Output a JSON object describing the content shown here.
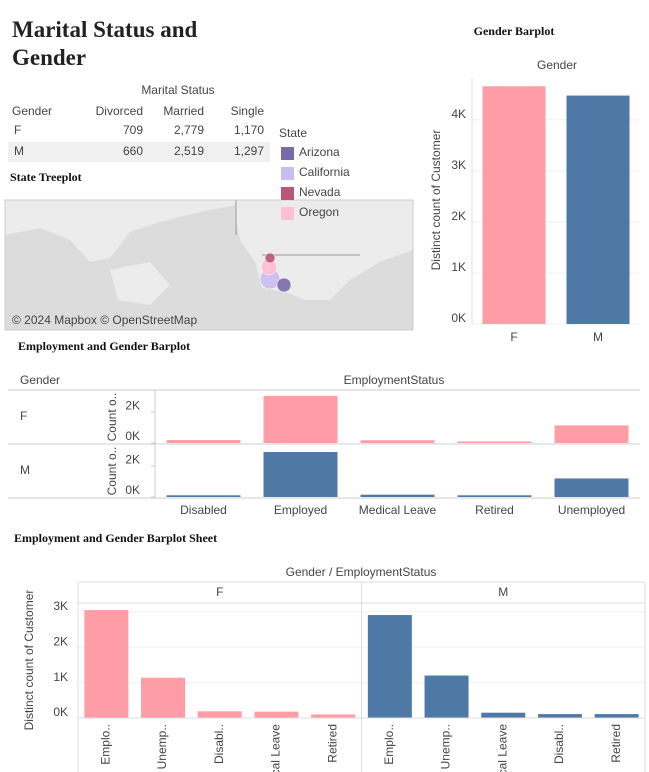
{
  "chart_data": [
    {
      "type": "table",
      "title": "Marital Status and Gender",
      "column_header": "Marital Status",
      "row_header": "Gender",
      "columns": [
        "Divorced",
        "Married",
        "Single"
      ],
      "rows": [
        {
          "name": "F",
          "values": [
            "709",
            "2,779",
            "1,170"
          ]
        },
        {
          "name": "M",
          "values": [
            "660",
            "2,519",
            "1,297"
          ]
        }
      ]
    },
    {
      "type": "map",
      "title": "State Treeplot",
      "legend_title": "State",
      "series": [
        {
          "name": "Arizona",
          "color": "#7b6aa8"
        },
        {
          "name": "California",
          "color": "#c9bdf0"
        },
        {
          "name": "Nevada",
          "color": "#b9577b"
        },
        {
          "name": "Oregon",
          "color": "#ffbfd3"
        }
      ],
      "attribution": "© 2024 Mapbox © OpenStreetMap"
    },
    {
      "type": "bar",
      "title": "Gender Barplot",
      "header": "Gender",
      "y_label": "Distinct count of Customer",
      "categories": [
        "F",
        "M"
      ],
      "values": [
        4658,
        4476
      ],
      "colors": [
        "#ff9da7",
        "#4e79a7"
      ],
      "grid": true,
      "ylim": [
        0,
        4820
      ],
      "yticks": [
        {
          "value": 0,
          "label": "0K"
        },
        {
          "value": 1000,
          "label": "1K"
        },
        {
          "value": 2000,
          "label": "2K"
        },
        {
          "value": 3000,
          "label": "3K"
        },
        {
          "value": 4000,
          "label": "4K"
        }
      ]
    },
    {
      "type": "trellis",
      "title": "Employment and Gender Barplot",
      "row_header": "Gender",
      "column_header": "EmploymentStatus",
      "categories": [
        "Disabled",
        "Employed",
        "Medical Leave",
        "Retired",
        "Unemployed"
      ],
      "series": [
        {
          "name": "F",
          "color": "#ff9da7",
          "y_label": "Count o..",
          "values": [
            190,
            3050,
            180,
            100,
            1140
          ]
        },
        {
          "name": "M",
          "color": "#4e79a7",
          "y_label": "Count o..",
          "values": [
            110,
            2910,
            150,
            110,
            1200
          ]
        }
      ],
      "ylim": [
        0,
        3300
      ],
      "yticks": [
        {
          "value": 0,
          "label": "0K"
        },
        {
          "value": 2000,
          "label": "2K"
        }
      ]
    },
    {
      "type": "panel",
      "title": "Employment and Gender Barplot Sheet",
      "header": "Gender / EmploymentStatus",
      "y_label": "Distinct count of Customer",
      "grid": true,
      "facets": [
        {
          "name": "F",
          "color": "#ff9da7",
          "categories": [
            "Emplo..",
            "Unemp..",
            "Disabl..",
            "Medical Leave",
            "Retired"
          ],
          "values": [
            3050,
            1140,
            190,
            180,
            100
          ]
        },
        {
          "name": "M",
          "color": "#4e79a7",
          "categories": [
            "Emplo..",
            "Unemp..",
            "Medical Leave",
            "Disabl..",
            "Retired"
          ],
          "values": [
            2910,
            1200,
            150,
            110,
            110
          ]
        }
      ],
      "ylim": [
        0,
        3250
      ],
      "yticks": [
        {
          "value": 0,
          "label": "0K"
        },
        {
          "value": 1000,
          "label": "1K"
        },
        {
          "value": 2000,
          "label": "2K"
        },
        {
          "value": 3000,
          "label": "3K"
        }
      ]
    }
  ]
}
